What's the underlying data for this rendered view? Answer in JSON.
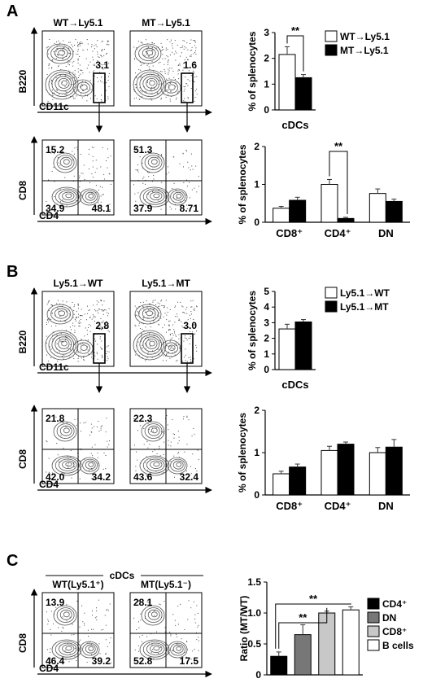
{
  "colors": {
    "fg": "#000000",
    "bg": "#ffffff",
    "contour": "#555555",
    "gray_dark": "#777777",
    "gray_light": "#c8c8c8",
    "error": "#333333"
  },
  "icons": [
    "arrow-right-icon",
    "arrow-up-icon",
    "arrow-down-icon",
    "gate-box-icon",
    "quadrant-lines-icon",
    "contour-density-icon"
  ],
  "panels": [
    {
      "letter": "A",
      "plots": [
        {
          "title": "WT→Ly5.1",
          "gate_value": "3.1",
          "quad_values": [
            "15.2",
            "34.9",
            "48.1"
          ]
        },
        {
          "title": "MT→Ly5.1",
          "gate_value": "1.6",
          "quad_values": [
            "51.3",
            "37.9",
            "8.71"
          ]
        }
      ]
    },
    {
      "letter": "B",
      "plots": [
        {
          "title": "Ly5.1→WT",
          "gate_value": "2.8",
          "quad_values": [
            "21.8",
            "42.0",
            "34.2"
          ]
        },
        {
          "title": "Ly5.1→MT",
          "gate_value": "3.0",
          "quad_values": [
            "22.3",
            "43.6",
            "32.4"
          ]
        }
      ]
    },
    {
      "letter": "C",
      "group_label": "cDCs",
      "plots": [
        {
          "title": "WT(Ly5.1⁺)",
          "quad_values": [
            "13.9",
            "46.4",
            "39.2"
          ]
        },
        {
          "title": "MT(Ly5.1⁻)",
          "quad_values": [
            "28.1",
            "52.8",
            "17.5"
          ]
        }
      ]
    }
  ],
  "flow_axes": {
    "top_x": "CD11c",
    "top_y": "B220",
    "bottom_x": "CD4",
    "bottom_y": "CD8"
  },
  "chart_data": [
    {
      "id": "A-cdc",
      "type": "bar",
      "ylabel": "% of splenocytes",
      "ylim": [
        0,
        3
      ],
      "ticks": [
        "0",
        "1",
        "2",
        "3"
      ],
      "categories": [
        "cDCs"
      ],
      "series": [
        {
          "name": "WT→Ly5.1",
          "values": [
            2.15
          ],
          "errors": [
            0.3
          ]
        },
        {
          "name": "MT→Ly5.1",
          "values": [
            1.25
          ],
          "errors": [
            0.12
          ]
        }
      ],
      "significance": [
        {
          "label": "**"
        }
      ]
    },
    {
      "id": "A-sub",
      "type": "bar",
      "ylabel": "% of splenocytes",
      "ylim": [
        0,
        2
      ],
      "ticks": [
        "0",
        "1",
        "2"
      ],
      "categories": [
        "CD8⁺",
        "CD4⁺",
        "DN"
      ],
      "series": [
        {
          "values": [
            0.37,
            1.0,
            0.76
          ],
          "errors": [
            0.05,
            0.13,
            0.12
          ]
        },
        {
          "values": [
            0.58,
            0.1,
            0.55
          ],
          "errors": [
            0.08,
            0.03,
            0.06
          ]
        }
      ],
      "significance": [
        {
          "label": "**"
        }
      ]
    },
    {
      "id": "B-cdc",
      "type": "bar",
      "ylabel": "% of splenocytes",
      "ylim": [
        0,
        5
      ],
      "ticks": [
        "0",
        "1",
        "2",
        "3",
        "4",
        "5"
      ],
      "categories": [
        "cDCs"
      ],
      "series": [
        {
          "name": "Ly5.1→WT",
          "values": [
            2.6
          ],
          "errors": [
            0.3
          ]
        },
        {
          "name": "Ly5.1→MT",
          "values": [
            3.05
          ],
          "errors": [
            0.15
          ]
        }
      ]
    },
    {
      "id": "B-sub",
      "type": "bar",
      "ylabel": "% of splenocytes",
      "ylim": [
        0,
        2
      ],
      "ticks": [
        "0",
        "1",
        "2"
      ],
      "categories": [
        "CD8⁺",
        "CD4⁺",
        "DN"
      ],
      "series": [
        {
          "values": [
            0.5,
            1.05,
            1.0
          ],
          "errors": [
            0.06,
            0.1,
            0.12
          ]
        },
        {
          "values": [
            0.66,
            1.2,
            1.13
          ],
          "errors": [
            0.07,
            0.05,
            0.18
          ]
        }
      ]
    },
    {
      "id": "C-ratio",
      "type": "bar",
      "ylabel": "Ratio (MT/WT)",
      "ylim": [
        0,
        1.5
      ],
      "ticks": [
        "0",
        "0.5",
        "1.0",
        "1.5"
      ],
      "categories": [
        "CD4⁺",
        "DN",
        "CD8⁺",
        "B cells"
      ],
      "values": [
        0.3,
        0.65,
        1.0,
        1.05
      ],
      "errors": [
        0.07,
        0.16,
        0.03,
        0.05
      ],
      "colors": [
        "#000000",
        "#777777",
        "#c8c8c8",
        "#ffffff"
      ],
      "legend": [
        "CD4⁺",
        "DN",
        "CD8⁺",
        "B cells"
      ],
      "significance": [
        {
          "label": "**"
        },
        {
          "label": "**"
        }
      ]
    }
  ]
}
